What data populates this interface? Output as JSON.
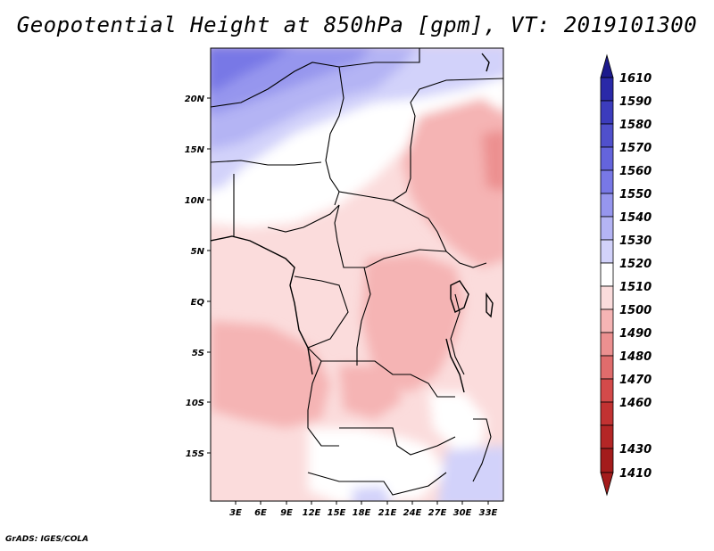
{
  "title": "Geopotential Height at 850hPa [gpm], VT: 2019101300",
  "credit": "GrADS: IGES/COLA",
  "map": {
    "lat_labels": [
      "20N",
      "15N",
      "10N",
      "5N",
      "EQ",
      "5S",
      "10S",
      "15S"
    ],
    "lon_labels": [
      "3E",
      "6E",
      "9E",
      "12E",
      "15E",
      "18E",
      "21E",
      "24E",
      "27E",
      "30E",
      "33E"
    ]
  },
  "colorbar": {
    "levels": [
      "1610",
      "1590",
      "1580",
      "1570",
      "1560",
      "1550",
      "1540",
      "1530",
      "1520",
      "1510",
      "1500",
      "1490",
      "1480",
      "1470",
      "1460",
      "1430",
      "1410"
    ],
    "colors": [
      "#1c1a8c",
      "#2a29a8",
      "#3c3cbd",
      "#5050cc",
      "#6464dc",
      "#7878e6",
      "#9696ee",
      "#b4b4f4",
      "#d2d2fa",
      "#ffffff",
      "#fbdcdc",
      "#f5b4b4",
      "#ec9090",
      "#e06c6c",
      "#d44a4a",
      "#c23232",
      "#a41c1c"
    ]
  }
}
